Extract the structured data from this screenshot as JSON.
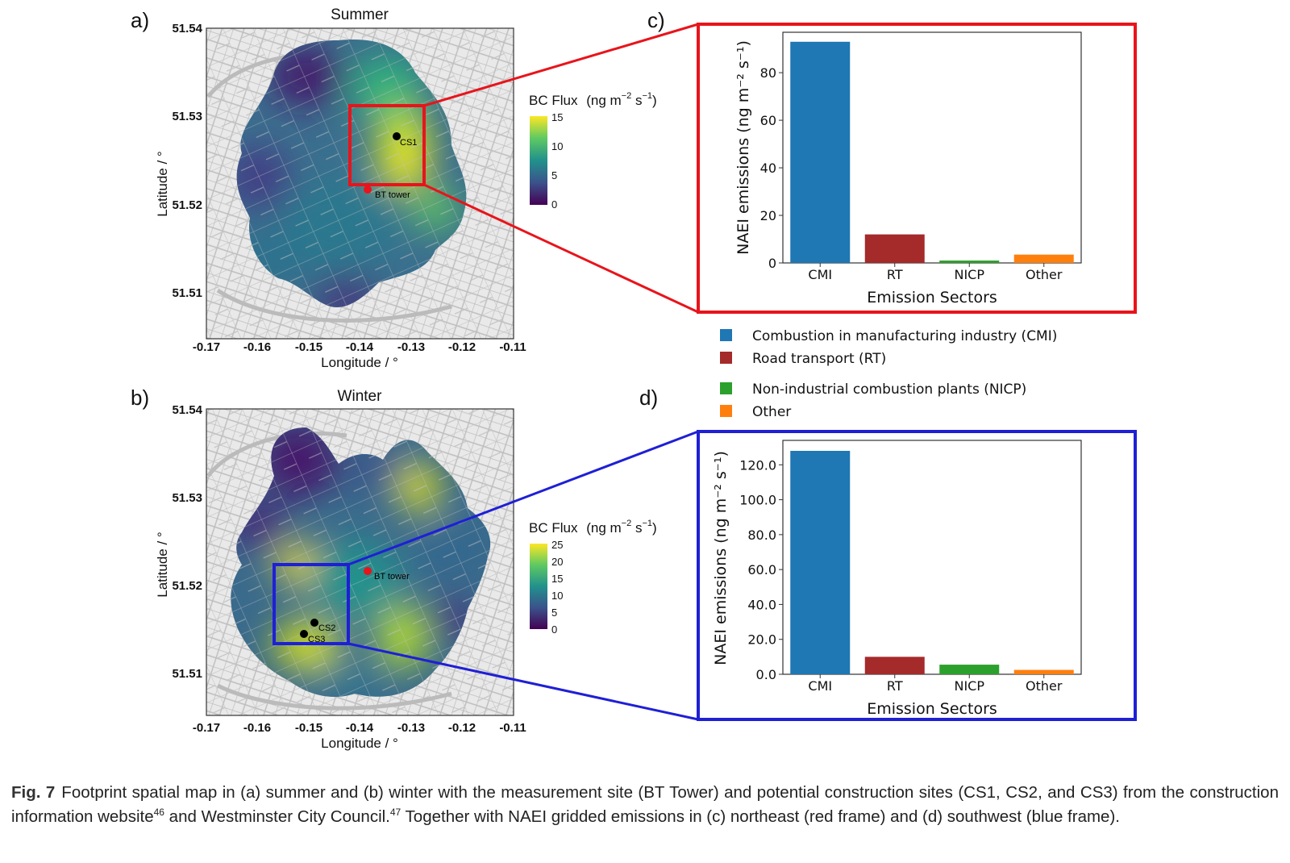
{
  "panels": {
    "a": {
      "letter": "a)",
      "title": "Summer",
      "xlabel": "Longitude / °",
      "ylabel": "Latitude / °",
      "yticks": [
        "51.54",
        "51.53",
        "51.52",
        "51.51"
      ],
      "xticks": [
        "-0.17",
        "-0.16",
        "-0.15",
        "-0.14",
        "-0.13",
        "-0.12",
        "-0.11"
      ],
      "colorbar": {
        "label": "BC Flux",
        "unit_base": "(ng m",
        "unit_exp1": "−2",
        "unit_mid": " s",
        "unit_exp2": "−1",
        "unit_close": ")",
        "ticks": [
          "15",
          "10",
          "5",
          "0"
        ]
      },
      "markers": {
        "cs1": "CS1",
        "bt": "BT tower"
      }
    },
    "b": {
      "letter": "b)",
      "title": "Winter",
      "xlabel": "Longitude / °",
      "ylabel": "Latitude / °",
      "yticks": [
        "51.54",
        "51.53",
        "51.52",
        "51.51"
      ],
      "xticks": [
        "-0.17",
        "-0.16",
        "-0.15",
        "-0.14",
        "-0.13",
        "-0.12",
        "-0.11"
      ],
      "colorbar": {
        "label": "BC Flux",
        "unit_base": "(ng m",
        "unit_exp1": "−2",
        "unit_mid": " s",
        "unit_exp2": "−1",
        "unit_close": ")",
        "ticks": [
          "25",
          "20",
          "15",
          "10",
          "5",
          "0"
        ]
      },
      "markers": {
        "cs2": "CS2",
        "cs3": "CS3",
        "bt": "BT tower"
      }
    },
    "c": {
      "letter": "c)"
    },
    "d": {
      "letter": "d)"
    }
  },
  "legend": {
    "items": [
      {
        "label": "Combustion in manufacturing industry (CMI)",
        "color": "#1f77b4"
      },
      {
        "label": "Road transport (RT)",
        "color": "#a52a2a"
      },
      {
        "label": "Non-industrial combustion plants (NICP)",
        "color": "#2ca02c"
      },
      {
        "label": "Other",
        "color": "#ff7f0e"
      }
    ]
  },
  "frame_colors": {
    "summer": "#e8141b",
    "winter": "#1f1fd6"
  },
  "chart_data": [
    {
      "type": "bar",
      "panel": "c",
      "categories": [
        "CMI",
        "RT",
        "NICP",
        "Other"
      ],
      "values": [
        93,
        12,
        1,
        3.5
      ],
      "colors": [
        "#1f77b4",
        "#a52a2a",
        "#2ca02c",
        "#ff7f0e"
      ],
      "xlabel": "Emission Sectors",
      "ylabel": "NAEI emissions (ng m⁻² s⁻¹)",
      "ylim": [
        0,
        97
      ],
      "yticks": [
        "0",
        "20",
        "40",
        "60",
        "80"
      ],
      "ytick_values": [
        0,
        20,
        40,
        60,
        80
      ]
    },
    {
      "type": "bar",
      "panel": "d",
      "categories": [
        "CMI",
        "RT",
        "NICP",
        "Other"
      ],
      "values": [
        128,
        10,
        5.5,
        2.5
      ],
      "colors": [
        "#1f77b4",
        "#a52a2a",
        "#2ca02c",
        "#ff7f0e"
      ],
      "xlabel": "Emission Sectors",
      "ylabel": "NAEI emissions (ng m⁻² s⁻¹)",
      "ylim": [
        0,
        134
      ],
      "yticks": [
        "0.0",
        "20.0",
        "40.0",
        "60.0",
        "80.0",
        "100.0",
        "120.0"
      ],
      "ytick_values": [
        0,
        20,
        40,
        60,
        80,
        100,
        120
      ]
    }
  ],
  "caption": {
    "fig": "Fig. 7",
    "part1": "Footprint spatial map in (a) summer and (b) winter with the measurement site (BT Tower) and potential construction sites (CS1, CS2, and CS3) from the construction information website",
    "ref1": "46",
    "part2": " and Westminster City Council.",
    "ref2": "47",
    "part3": " Together with NAEI gridded emissions in (c) northeast (red frame) and (d) southwest (blue frame)."
  }
}
